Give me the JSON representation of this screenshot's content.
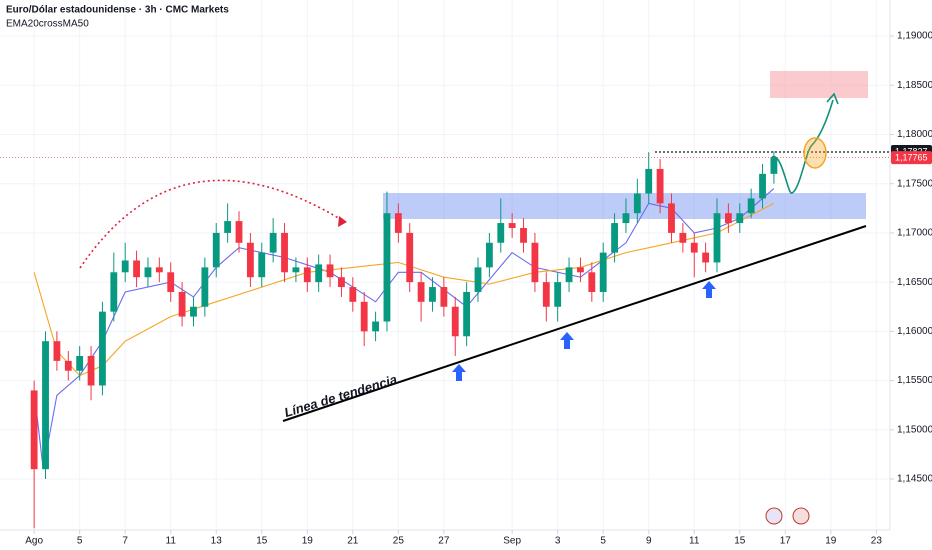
{
  "chart_data": {
    "type": "candlestick",
    "title": "Euro/Dólar estadounidense · 3h · CMC Markets",
    "indicator": "EMA20crossMA50",
    "annotation": "Línea de tendencia",
    "x": [
      0,
      0.5,
      1,
      1.5,
      2,
      2.5,
      3,
      3.5,
      4,
      4.5,
      5,
      5.5,
      6,
      6.5,
      7,
      7.5,
      8,
      8.5,
      9,
      9.5,
      10,
      10.5,
      11,
      11.5,
      12,
      12.5,
      13,
      13.5,
      14,
      14.5,
      15,
      15.5,
      16,
      16.5,
      17,
      17.5,
      18,
      18.5,
      19,
      19.5,
      20,
      20.5,
      21,
      21.5,
      22,
      22.5,
      23,
      23.5,
      24,
      24.5,
      25,
      25.5,
      26,
      26.5,
      27,
      27.5,
      28,
      28.5,
      29,
      29.5,
      30,
      30.5,
      31,
      31.5,
      32,
      32.5
    ],
    "open": [
      1.154,
      1.146,
      1.159,
      1.157,
      1.156,
      1.1575,
      1.1545,
      1.162,
      1.166,
      1.1672,
      1.1655,
      1.1665,
      1.166,
      1.164,
      1.1615,
      1.1625,
      1.1665,
      1.17,
      1.1712,
      1.169,
      1.1655,
      1.168,
      1.17,
      1.166,
      1.1665,
      1.165,
      1.1668,
      1.1655,
      1.1645,
      1.163,
      1.16,
      1.161,
      1.172,
      1.17,
      1.165,
      1.163,
      1.1645,
      1.1625,
      1.1595,
      1.164,
      1.1665,
      1.169,
      1.171,
      1.1705,
      1.169,
      1.165,
      1.1625,
      1.165,
      1.1665,
      1.166,
      1.164,
      1.168,
      1.171,
      1.172,
      1.174,
      1.1765,
      1.173,
      1.17,
      1.169,
      1.168,
      1.167,
      1.172,
      1.171,
      1.172,
      1.1735,
      1.176
    ],
    "high": [
      1.155,
      1.16,
      1.16,
      1.158,
      1.1585,
      1.1585,
      1.163,
      1.168,
      1.169,
      1.1682,
      1.1675,
      1.1675,
      1.167,
      1.165,
      1.1635,
      1.1675,
      1.171,
      1.173,
      1.1722,
      1.17,
      1.169,
      1.1715,
      1.171,
      1.1675,
      1.1675,
      1.1678,
      1.1678,
      1.1665,
      1.1655,
      1.164,
      1.162,
      1.1742,
      1.173,
      1.171,
      1.166,
      1.1655,
      1.1655,
      1.1635,
      1.165,
      1.1675,
      1.17,
      1.1735,
      1.172,
      1.1715,
      1.17,
      1.166,
      1.166,
      1.1675,
      1.1675,
      1.167,
      1.169,
      1.172,
      1.1735,
      1.1755,
      1.1782,
      1.1775,
      1.174,
      1.171,
      1.17,
      1.169,
      1.1735,
      1.173,
      1.173,
      1.1745,
      1.177,
      1.1783
    ],
    "low": [
      1.14,
      1.145,
      1.156,
      1.155,
      1.155,
      1.153,
      1.1535,
      1.161,
      1.165,
      1.1645,
      1.1645,
      1.165,
      1.163,
      1.1605,
      1.1605,
      1.1615,
      1.1655,
      1.169,
      1.168,
      1.1645,
      1.1645,
      1.167,
      1.165,
      1.165,
      1.164,
      1.164,
      1.1645,
      1.1635,
      1.162,
      1.1585,
      1.159,
      1.16,
      1.169,
      1.164,
      1.161,
      1.162,
      1.1615,
      1.1575,
      1.1585,
      1.163,
      1.1655,
      1.168,
      1.1695,
      1.168,
      1.164,
      1.161,
      1.161,
      1.164,
      1.165,
      1.163,
      1.163,
      1.167,
      1.17,
      1.171,
      1.173,
      1.172,
      1.169,
      1.168,
      1.1655,
      1.166,
      1.166,
      1.17,
      1.17,
      1.1715,
      1.1725,
      1.175
    ],
    "close": [
      1.146,
      1.159,
      1.157,
      1.156,
      1.1575,
      1.1545,
      1.162,
      1.166,
      1.1672,
      1.1655,
      1.1665,
      1.166,
      1.164,
      1.1615,
      1.1625,
      1.1665,
      1.17,
      1.1712,
      1.169,
      1.1655,
      1.168,
      1.17,
      1.166,
      1.1665,
      1.165,
      1.1668,
      1.1655,
      1.1645,
      1.163,
      1.16,
      1.161,
      1.172,
      1.17,
      1.165,
      1.163,
      1.1645,
      1.1625,
      1.1595,
      1.164,
      1.1665,
      1.169,
      1.171,
      1.1705,
      1.169,
      1.165,
      1.1625,
      1.165,
      1.1665,
      1.166,
      1.164,
      1.168,
      1.171,
      1.172,
      1.174,
      1.1765,
      1.173,
      1.17,
      1.169,
      1.168,
      1.167,
      1.172,
      1.171,
      1.172,
      1.1735,
      1.176,
      1.1777
    ],
    "up_color": "#089981",
    "down_color": "#f23645",
    "lines": [
      {
        "color": "#6b6bf0",
        "x": [
          0,
          0.4,
          1,
          2,
          3,
          4,
          6,
          7,
          8,
          9,
          11,
          13,
          15,
          16,
          17,
          19,
          21,
          22,
          24,
          26,
          27,
          28,
          29,
          30,
          31,
          32.5
        ],
        "values": [
          1.154,
          1.146,
          1.1535,
          1.1555,
          1.159,
          1.164,
          1.165,
          1.1635,
          1.1665,
          1.1685,
          1.1675,
          1.166,
          1.163,
          1.166,
          1.166,
          1.1625,
          1.168,
          1.1665,
          1.1655,
          1.169,
          1.173,
          1.1725,
          1.17,
          1.1705,
          1.1715,
          1.1745
        ]
      },
      {
        "color": "#f5a623",
        "x": [
          0,
          1,
          2,
          3,
          4,
          6,
          8,
          10,
          12,
          14,
          16,
          18,
          20,
          22,
          24,
          26,
          28,
          30,
          32.5
        ],
        "values": [
          1.166,
          1.158,
          1.1555,
          1.1565,
          1.159,
          1.1615,
          1.163,
          1.1645,
          1.166,
          1.1665,
          1.167,
          1.1655,
          1.1648,
          1.166,
          1.1665,
          1.168,
          1.169,
          1.17,
          1.173
        ]
      }
    ],
    "xlim": [
      -1.5,
      37.6
    ],
    "ylim": [
      1.13982,
      1.19366
    ],
    "xticks": [
      {
        "value": 0,
        "label": "Ago"
      },
      {
        "value": 2,
        "label": "5"
      },
      {
        "value": 4,
        "label": "7"
      },
      {
        "value": 6,
        "label": "11"
      },
      {
        "value": 8,
        "label": "13"
      },
      {
        "value": 10,
        "label": "15"
      },
      {
        "value": 12,
        "label": "19"
      },
      {
        "value": 14,
        "label": "21"
      },
      {
        "value": 16,
        "label": "25"
      },
      {
        "value": 18,
        "label": "27"
      },
      {
        "value": 21,
        "label": "Sep"
      },
      {
        "value": 23,
        "label": "3"
      },
      {
        "value": 25,
        "label": "5"
      },
      {
        "value": 27,
        "label": "9"
      },
      {
        "value": 29,
        "label": "11"
      },
      {
        "value": 31,
        "label": "15"
      },
      {
        "value": 33,
        "label": "17"
      },
      {
        "value": 35,
        "label": "19"
      },
      {
        "value": 37,
        "label": "23"
      }
    ],
    "yticks": [
      {
        "value": 1.145,
        "label": "1,14500"
      },
      {
        "value": 1.15,
        "label": "1,15000"
      },
      {
        "value": 1.155,
        "label": "1,15500"
      },
      {
        "value": 1.16,
        "label": "1,16000"
      },
      {
        "value": 1.165,
        "label": "1,16500"
      },
      {
        "value": 1.17,
        "label": "1,17000"
      },
      {
        "value": 1.175,
        "label": "1,17500"
      },
      {
        "value": 1.18,
        "label": "1,18000"
      },
      {
        "value": 1.185,
        "label": "1,18500"
      },
      {
        "value": 1.19,
        "label": "1,19000"
      }
    ],
    "price_labels": [
      {
        "value": 1.17827,
        "label": "1,17827",
        "color": "#131722"
      },
      {
        "value": 1.17765,
        "label": "1,17765",
        "color": "#f23645"
      }
    ],
    "grid": true
  }
}
